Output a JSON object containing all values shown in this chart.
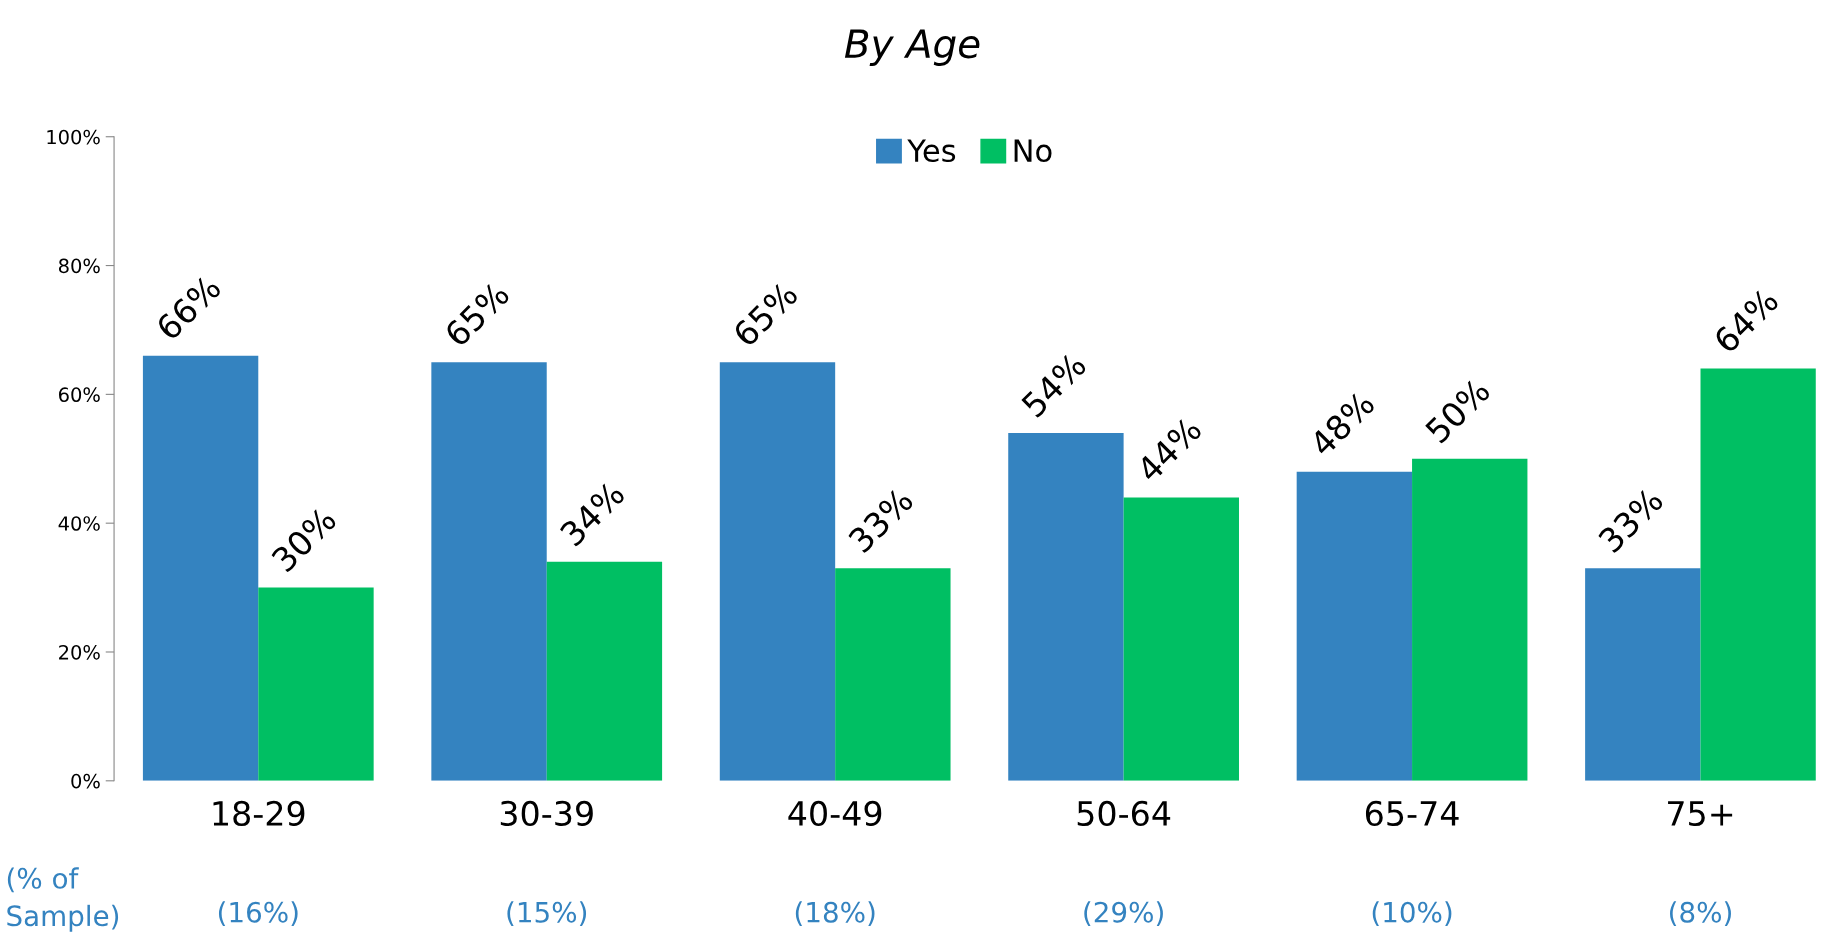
{
  "chart_data": {
    "type": "bar",
    "title": "By Age",
    "categories": [
      "18-29",
      "30-39",
      "40-49",
      "50-64",
      "65-74",
      "75+"
    ],
    "series": [
      {
        "name": "Yes",
        "color": "#3483c0",
        "values": [
          66,
          65,
          65,
          54,
          48,
          33
        ],
        "value_labels": [
          "66%",
          "65%",
          "65%",
          "54%",
          "48%",
          "33%"
        ]
      },
      {
        "name": "No",
        "color": "#00bf63",
        "values": [
          30,
          34,
          33,
          44,
          50,
          64
        ],
        "value_labels": [
          "30%",
          "34%",
          "33%",
          "44%",
          "50%",
          "64%"
        ]
      }
    ],
    "ylim": [
      0,
      100
    ],
    "yticks": [
      {
        "value": 0,
        "label": "0%"
      },
      {
        "value": 20,
        "label": "20%"
      },
      {
        "value": 40,
        "label": "40%"
      },
      {
        "value": 60,
        "label": "60%"
      },
      {
        "value": 80,
        "label": "80%"
      },
      {
        "value": 100,
        "label": "100%"
      }
    ],
    "grid": false,
    "legend": "top",
    "annotations": [
      "(% of\nSample)",
      "(16%)",
      "(15%)",
      "(18%)",
      "(29%)",
      "(10%)",
      "(8%)"
    ]
  }
}
